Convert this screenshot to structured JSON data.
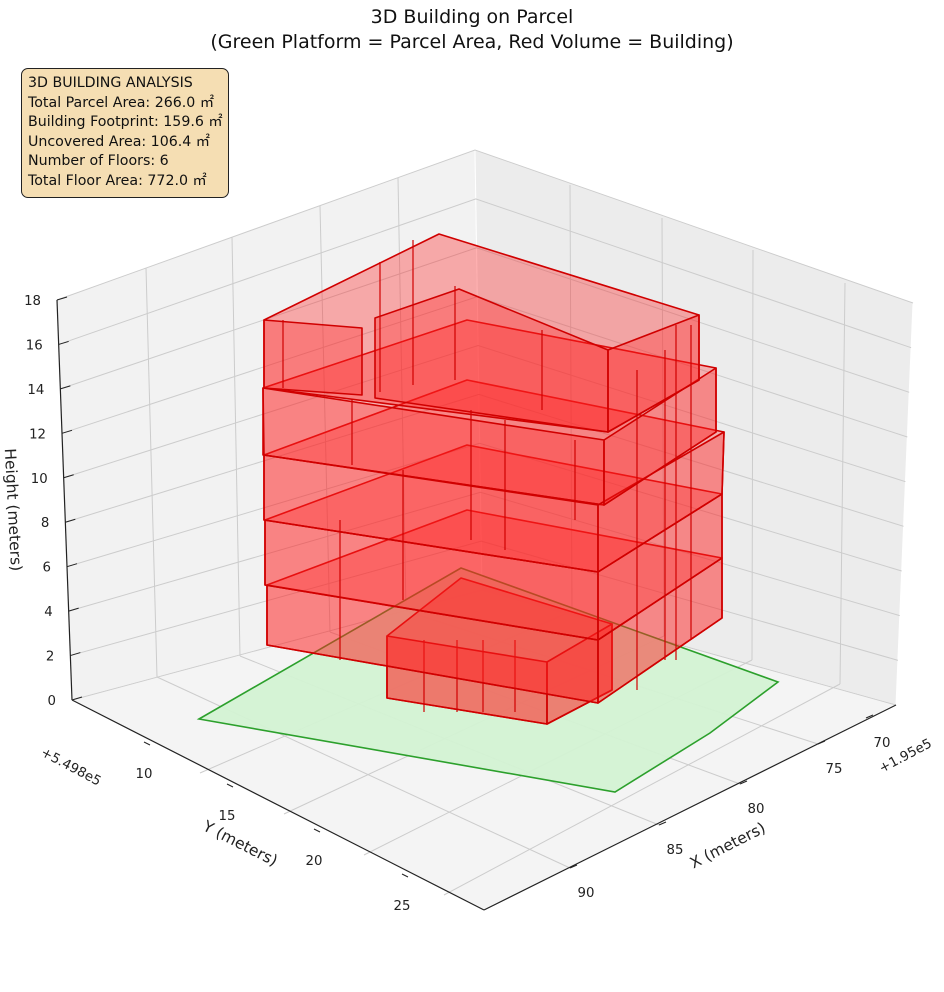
{
  "title_line1": "3D Building on Parcel",
  "title_line2": "(Green Platform = Parcel Area, Red Volume = Building)",
  "info_box": {
    "heading": "3D BUILDING ANALYSIS",
    "lines": [
      "Total Parcel Area: 266.0 ㎡",
      "Building Footprint: 159.6 ㎡",
      "Uncovered Area: 106.4 ㎡",
      "Number of Floors: 6",
      "Total Floor Area: 772.0 ㎡"
    ]
  },
  "colors": {
    "parcel_fill": "#d3f2d3",
    "parcel_edge": "#2ca02c",
    "building_fill": "#ff2020",
    "building_edge": "#d00000",
    "pane": "#f3f3f3",
    "grid": "#c8c8c8"
  },
  "chart_data": {
    "type": "3d-surface",
    "title": "3D Building on Parcel\n(Green Platform = Parcel Area, Red Volume = Building)",
    "xlabel": "X (meters)",
    "ylabel": "Y (meters)",
    "zlabel": "Height (meters)",
    "x_offset_label": "+1.95e5",
    "y_offset_label": "+5.498e5",
    "x_ticks": [
      "70",
      "75",
      "80",
      "85",
      "90"
    ],
    "y_ticks": [
      "10",
      "15",
      "20",
      "25"
    ],
    "z_ticks": [
      "0",
      "2",
      "4",
      "6",
      "8",
      "10",
      "12",
      "14",
      "16",
      "18"
    ],
    "zlim": [
      0,
      18
    ],
    "grid": true,
    "series": [
      {
        "name": "Parcel Area",
        "kind": "platform",
        "z": 0,
        "area_m2": 266.0
      },
      {
        "name": "Building",
        "kind": "volume",
        "floors": 6,
        "floor_height_m": 3,
        "height_m": 18,
        "footprint_m2": 159.6,
        "total_floor_area_m2": 772.0
      }
    ]
  }
}
